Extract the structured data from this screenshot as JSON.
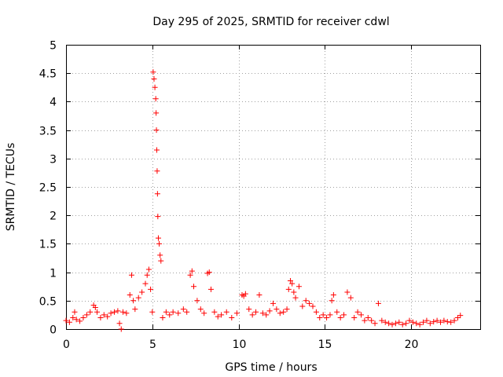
{
  "chart_data": {
    "type": "scatter",
    "title": "Day 295 of 2025, SRMTID for receiver cdwl",
    "xlabel": "GPS time / hours",
    "ylabel": "SRMTID / TECUs",
    "xlim": [
      0,
      24
    ],
    "ylim": [
      0,
      5
    ],
    "xticks": [
      0,
      5,
      10,
      15,
      20
    ],
    "xtick_labels": [
      "0",
      "5",
      "10",
      "15",
      "20"
    ],
    "yticks": [
      0,
      0.5,
      1,
      1.5,
      2,
      2.5,
      3,
      3.5,
      4,
      4.5,
      5
    ],
    "ytick_labels": [
      "0",
      "0.5",
      "1",
      "1.5",
      "2",
      "2.5",
      "3",
      "3.5",
      "4",
      "4.5",
      "5"
    ],
    "grid": true,
    "marker": "+",
    "series": [
      {
        "name": "SRMTID",
        "color": "#ff0000",
        "x": [
          0.0,
          0.2,
          0.4,
          0.5,
          0.6,
          0.8,
          1.0,
          1.2,
          1.4,
          1.6,
          1.7,
          1.8,
          2.0,
          2.2,
          2.4,
          2.6,
          2.8,
          3.0,
          3.1,
          3.2,
          3.3,
          3.5,
          3.7,
          3.8,
          3.9,
          4.0,
          4.2,
          4.4,
          4.6,
          4.7,
          4.8,
          4.9,
          5.0,
          5.05,
          5.1,
          5.15,
          5.2,
          5.22,
          5.24,
          5.26,
          5.28,
          5.3,
          5.32,
          5.35,
          5.4,
          5.45,
          5.5,
          5.6,
          5.8,
          6.0,
          6.2,
          6.5,
          6.8,
          7.0,
          7.2,
          7.3,
          7.4,
          7.6,
          7.8,
          8.0,
          8.2,
          8.3,
          8.4,
          8.6,
          8.8,
          9.0,
          9.3,
          9.6,
          9.9,
          10.2,
          10.3,
          10.4,
          10.6,
          10.8,
          11.0,
          11.2,
          11.4,
          11.6,
          11.8,
          12.0,
          12.2,
          12.4,
          12.6,
          12.8,
          12.9,
          13.0,
          13.1,
          13.2,
          13.3,
          13.5,
          13.7,
          13.9,
          14.1,
          14.3,
          14.5,
          14.7,
          14.9,
          15.1,
          15.3,
          15.4,
          15.5,
          15.7,
          15.9,
          16.1,
          16.3,
          16.5,
          16.7,
          16.9,
          17.1,
          17.3,
          17.5,
          17.7,
          17.9,
          18.1,
          18.3,
          18.5,
          18.7,
          18.9,
          19.1,
          19.3,
          19.5,
          19.7,
          19.9,
          20.1,
          20.3,
          20.5,
          20.7,
          20.9,
          21.1,
          21.3,
          21.5,
          21.7,
          21.9,
          22.1,
          22.3,
          22.5,
          22.7,
          22.85
        ],
        "y": [
          0.15,
          0.12,
          0.2,
          0.3,
          0.17,
          0.14,
          0.2,
          0.25,
          0.3,
          0.42,
          0.38,
          0.3,
          0.2,
          0.25,
          0.22,
          0.28,
          0.3,
          0.32,
          0.1,
          0.0,
          0.3,
          0.28,
          0.6,
          0.95,
          0.5,
          0.35,
          0.55,
          0.65,
          0.8,
          0.95,
          1.05,
          0.7,
          0.3,
          4.52,
          4.4,
          4.25,
          4.05,
          3.8,
          3.5,
          3.15,
          2.78,
          2.38,
          1.98,
          1.6,
          1.5,
          1.3,
          1.2,
          0.2,
          0.3,
          0.25,
          0.3,
          0.28,
          0.35,
          0.3,
          0.95,
          1.02,
          0.75,
          0.5,
          0.35,
          0.28,
          0.98,
          1.0,
          0.7,
          0.3,
          0.22,
          0.25,
          0.3,
          0.2,
          0.28,
          0.6,
          0.58,
          0.62,
          0.35,
          0.25,
          0.3,
          0.6,
          0.28,
          0.25,
          0.32,
          0.45,
          0.35,
          0.28,
          0.3,
          0.35,
          0.7,
          0.85,
          0.8,
          0.65,
          0.55,
          0.75,
          0.4,
          0.5,
          0.45,
          0.4,
          0.3,
          0.2,
          0.25,
          0.2,
          0.25,
          0.5,
          0.6,
          0.3,
          0.2,
          0.25,
          0.65,
          0.55,
          0.2,
          0.3,
          0.25,
          0.15,
          0.2,
          0.15,
          0.1,
          0.45,
          0.15,
          0.12,
          0.1,
          0.08,
          0.1,
          0.12,
          0.08,
          0.1,
          0.15,
          0.12,
          0.1,
          0.08,
          0.12,
          0.15,
          0.1,
          0.13,
          0.15,
          0.12,
          0.15,
          0.13,
          0.12,
          0.15,
          0.2,
          0.24
        ]
      }
    ]
  }
}
